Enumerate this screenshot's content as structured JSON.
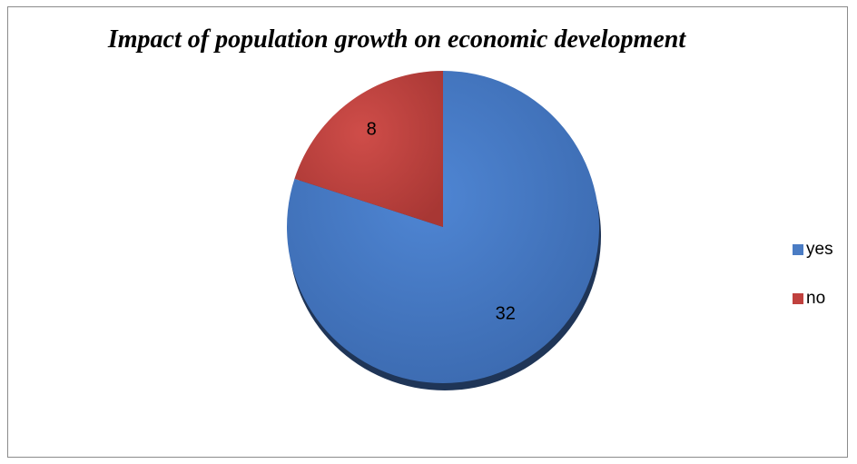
{
  "chart_data": {
    "type": "pie",
    "title": "Impact  of population growth on economic development",
    "categories": [
      "yes",
      "no"
    ],
    "values": [
      32,
      8
    ],
    "colors": [
      "#4a7cc4",
      "#c0413e"
    ],
    "legend_position": "right"
  }
}
